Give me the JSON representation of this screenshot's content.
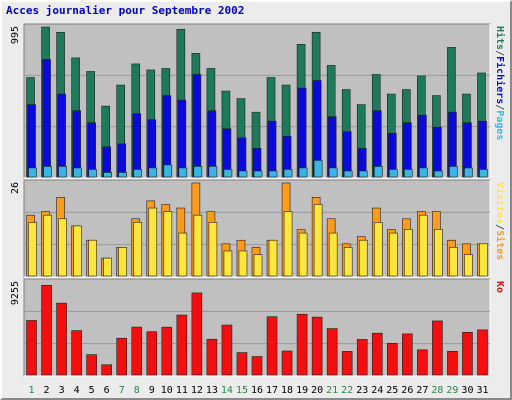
{
  "title": "Acces journalier pour Septembre 2002",
  "colors": {
    "background": "#ececec",
    "plot_background": "#c0c0c0",
    "title": "#0000cc",
    "hits": "#1e7a5a",
    "files": "#0a0adc",
    "pages": "#39b5e8",
    "visits": "#ff9a1a",
    "sites": "#ffe63c",
    "ko": "#f20f0f",
    "weekend_label": "#1e8a4a",
    "weekday_label": "#000000"
  },
  "chart_data": [
    {
      "type": "bar",
      "panel": "hits-files-pages",
      "ymax_label": "995",
      "legend": [
        "Pages",
        "/",
        "Fichiers",
        "/",
        "Hits"
      ],
      "legend_colors": [
        "#39b5e8",
        "#555555",
        "#0a0adc",
        "#555555",
        "#1e7a5a"
      ],
      "ylim": [
        0,
        995
      ],
      "categories": [
        "1",
        "2",
        "3",
        "4",
        "5",
        "6",
        "7",
        "8",
        "9",
        "10",
        "11",
        "12",
        "13",
        "14",
        "15",
        "16",
        "17",
        "18",
        "19",
        "20",
        "21",
        "22",
        "23",
        "24",
        "25",
        "26",
        "27",
        "28",
        "29",
        "30",
        "31"
      ],
      "series": [
        {
          "name": "Hits",
          "color_key": "hits",
          "values": [
            660,
            995,
            960,
            790,
            700,
            470,
            610,
            750,
            710,
            720,
            980,
            820,
            720,
            570,
            520,
            430,
            660,
            610,
            880,
            960,
            740,
            580,
            480,
            680,
            550,
            580,
            670,
            540,
            860,
            550,
            690
          ]
        },
        {
          "name": "Fichiers",
          "color_key": "files",
          "values": [
            480,
            780,
            550,
            440,
            360,
            200,
            220,
            420,
            380,
            540,
            510,
            680,
            440,
            320,
            260,
            190,
            370,
            270,
            590,
            640,
            400,
            300,
            190,
            440,
            290,
            360,
            410,
            330,
            430,
            360,
            370
          ]
        },
        {
          "name": "Pages",
          "color_key": "pages",
          "values": [
            60,
            70,
            70,
            60,
            50,
            30,
            30,
            50,
            60,
            80,
            60,
            70,
            70,
            50,
            40,
            40,
            40,
            50,
            60,
            110,
            60,
            40,
            40,
            70,
            50,
            50,
            60,
            40,
            70,
            60,
            50
          ]
        }
      ]
    },
    {
      "type": "bar",
      "panel": "visites-sites",
      "ymax_label": "26",
      "legend": [
        "Sites",
        "/",
        "Visites"
      ],
      "legend_colors": [
        "#ff9a1a",
        "#555555",
        "#ffe63c"
      ],
      "ylim": [
        0,
        26
      ],
      "categories": [
        "1",
        "2",
        "3",
        "4",
        "5",
        "6",
        "7",
        "8",
        "9",
        "10",
        "11",
        "12",
        "13",
        "14",
        "15",
        "16",
        "17",
        "18",
        "19",
        "20",
        "21",
        "22",
        "23",
        "24",
        "25",
        "26",
        "27",
        "28",
        "29",
        "30",
        "31"
      ],
      "series": [
        {
          "name": "Visites",
          "color_key": "visits",
          "values": [
            17,
            18,
            22,
            14,
            10,
            5,
            8,
            16,
            21,
            20,
            19,
            26,
            18,
            9,
            10,
            8,
            10,
            26,
            13,
            22,
            16,
            9,
            11,
            19,
            13,
            16,
            18,
            18,
            10,
            9,
            9
          ]
        },
        {
          "name": "Sites",
          "color_key": "sites",
          "values": [
            15,
            17,
            16,
            14,
            10,
            5,
            8,
            15,
            19,
            18,
            12,
            17,
            15,
            7,
            7,
            6,
            10,
            18,
            12,
            20,
            12,
            8,
            10,
            15,
            12,
            13,
            17,
            13,
            8,
            6,
            9
          ]
        }
      ]
    },
    {
      "type": "bar",
      "panel": "ko",
      "ymax_label": "9255",
      "legend": [
        "Ko"
      ],
      "legend_colors": [
        "#f20f0f"
      ],
      "ylim": [
        0,
        9255
      ],
      "categories": [
        "1",
        "2",
        "3",
        "4",
        "5",
        "6",
        "7",
        "8",
        "9",
        "10",
        "11",
        "12",
        "13",
        "14",
        "15",
        "16",
        "17",
        "18",
        "19",
        "20",
        "21",
        "22",
        "23",
        "24",
        "25",
        "26",
        "27",
        "28",
        "29",
        "30",
        "31"
      ],
      "series": [
        {
          "name": "Ko",
          "color_key": "ko",
          "values": [
            5430,
            8930,
            7150,
            4420,
            2030,
            1020,
            3660,
            4770,
            4310,
            4760,
            5970,
            8170,
            3560,
            4970,
            2230,
            1840,
            5800,
            2390,
            6050,
            5760,
            4620,
            2350,
            3540,
            4160,
            3160,
            4090,
            2510,
            5380,
            2360,
            4250,
            4490
          ]
        }
      ]
    }
  ],
  "x_labels": [
    "1",
    "2",
    "3",
    "4",
    "5",
    "6",
    "7",
    "8",
    "9",
    "10",
    "11",
    "12",
    "13",
    "14",
    "15",
    "16",
    "17",
    "18",
    "19",
    "20",
    "21",
    "22",
    "23",
    "24",
    "25",
    "26",
    "27",
    "28",
    "29",
    "30",
    "31"
  ],
  "weekend_days": [
    1,
    7,
    8,
    14,
    15,
    21,
    22,
    28,
    29
  ]
}
